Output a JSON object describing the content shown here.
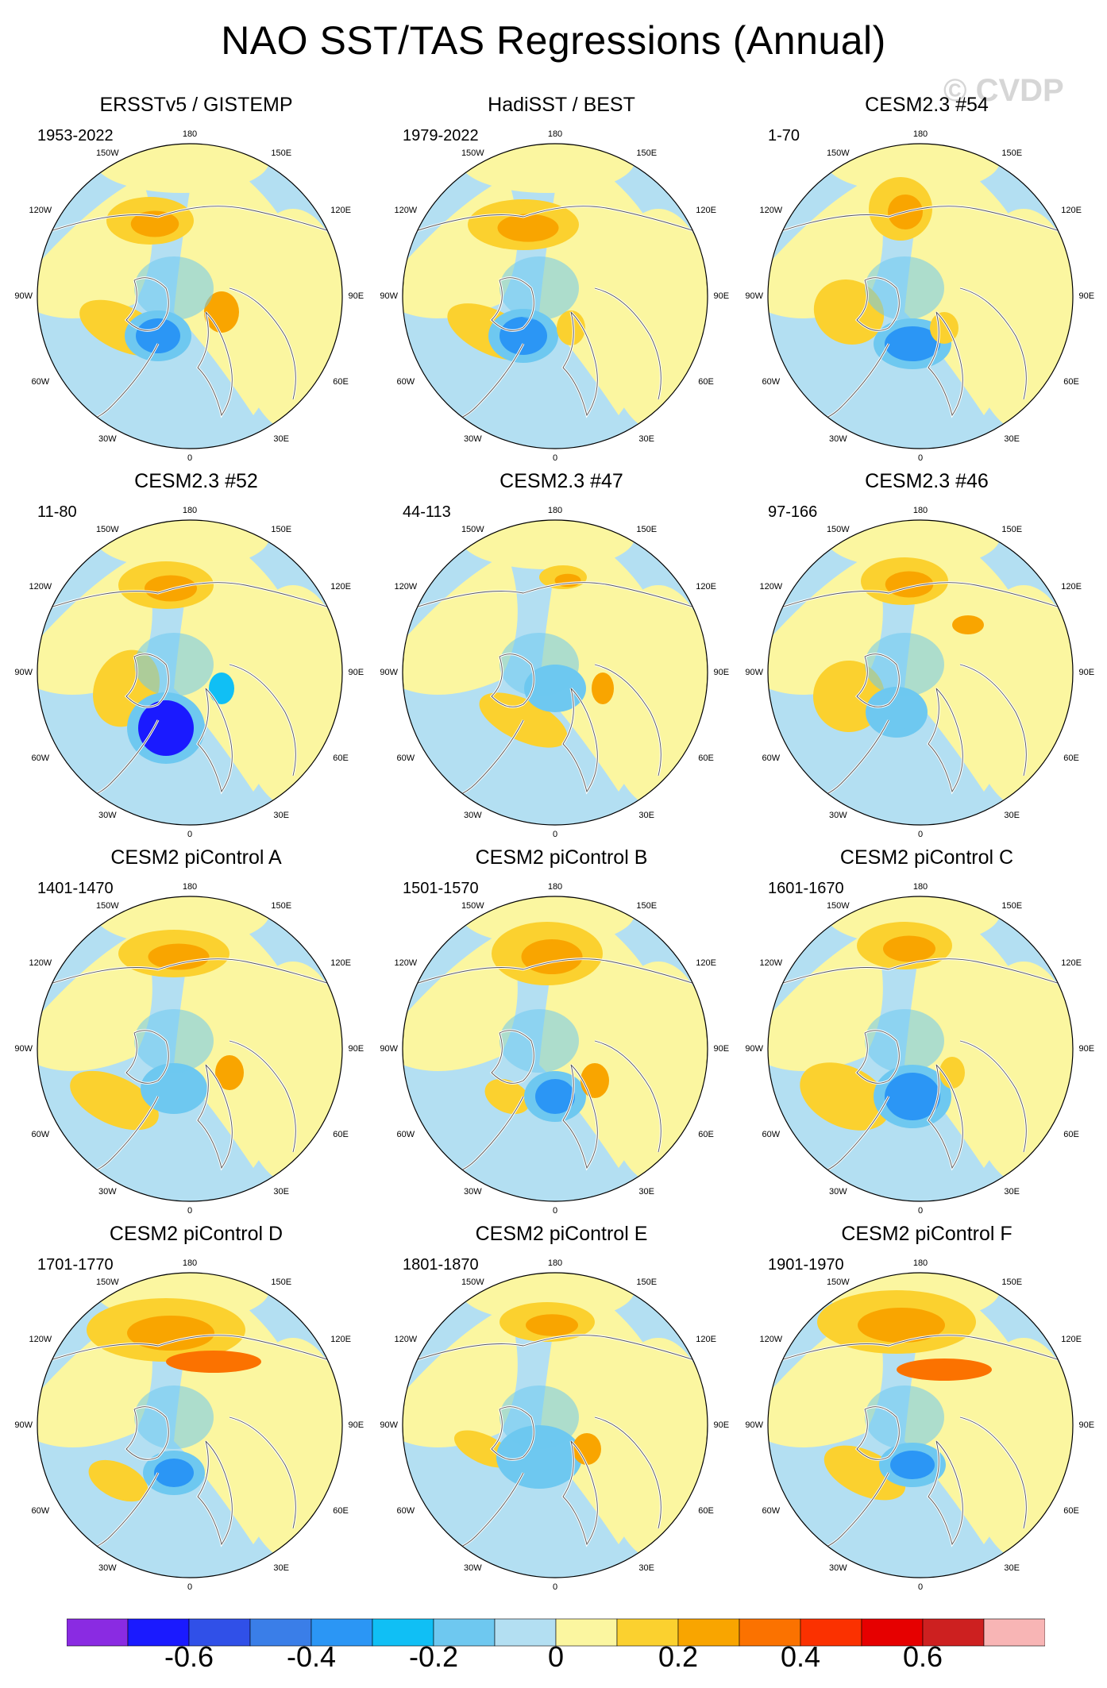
{
  "title": "NAO SST/TAS Regressions (Annual)",
  "watermark": "© CVDP",
  "map_labels": {
    "top": "180",
    "bottom": "0",
    "left": "90W",
    "right": "90E",
    "ul1": "150W",
    "ur1": "150E",
    "ul2": "120W",
    "ur2": "120E",
    "ll2": "60W",
    "lr2": "60E",
    "ll1": "30W",
    "lr1": "30E"
  },
  "panels": [
    {
      "title": "ERSSTv5 / GISTEMP",
      "period": "1953-2022"
    },
    {
      "title": "HadiSST / BEST",
      "period": "1979-2022"
    },
    {
      "title": "CESM2.3 #54",
      "period": "1-70"
    },
    {
      "title": "CESM2.3 #52",
      "period": "11-80"
    },
    {
      "title": "CESM2.3 #47",
      "period": "44-113"
    },
    {
      "title": "CESM2.3 #46",
      "period": "97-166"
    },
    {
      "title": "CESM2 piControl A",
      "period": "1401-1470"
    },
    {
      "title": "CESM2 piControl B",
      "period": "1501-1570"
    },
    {
      "title": "CESM2 piControl C",
      "period": "1601-1670"
    },
    {
      "title": "CESM2 piControl D",
      "period": "1701-1770"
    },
    {
      "title": "CESM2 piControl E",
      "period": "1801-1870"
    },
    {
      "title": "CESM2 piControl F",
      "period": "1901-1970"
    }
  ],
  "colorbar": {
    "colors": [
      "#8a2be2",
      "#1a1aff",
      "#3050e8",
      "#3a7ee8",
      "#2b96f5",
      "#10bff5",
      "#6ec8f0",
      "#b3dff2",
      "#fbf6a0",
      "#fbd12f",
      "#f9a500",
      "#fb7200",
      "#fb3100",
      "#e60000",
      "#cd2020",
      "#f8b5b5"
    ],
    "labels": [
      "-0.6",
      "-0.4",
      "-0.2",
      "0",
      "0.2",
      "0.4",
      "0.6"
    ]
  }
}
